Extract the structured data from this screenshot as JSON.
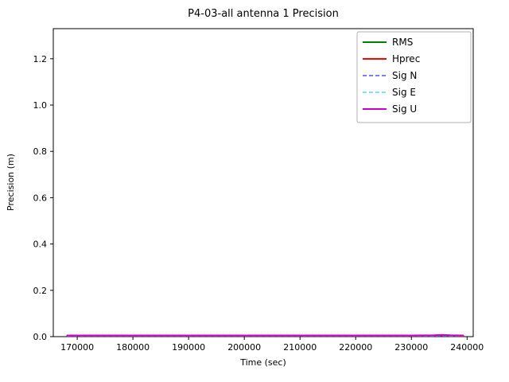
{
  "chart_data": {
    "type": "line",
    "title": "P4-03-all antenna 1 Precision",
    "xlabel": "Time (sec)",
    "ylabel": "Precision (m)",
    "xlim": [
      165700,
      241100
    ],
    "ylim": [
      0,
      1.33
    ],
    "xticks": [
      170000,
      180000,
      190000,
      200000,
      210000,
      220000,
      230000,
      240000
    ],
    "yticks": [
      0.0,
      0.2,
      0.4,
      0.6,
      0.8,
      1.0,
      1.2
    ],
    "grid": false,
    "legend_position": "upper right",
    "x": [
      168200,
      172000,
      178000,
      185000,
      192000,
      200000,
      208000,
      216000,
      224000,
      230000,
      234000,
      235500,
      237000,
      239300
    ],
    "series": [
      {
        "name": "RMS",
        "color": "#008000",
        "style": "solid",
        "width": 2,
        "values": [
          0.004,
          0.004,
          0.004,
          0.004,
          0.004,
          0.004,
          0.004,
          0.004,
          0.004,
          0.004,
          0.004,
          0.005,
          0.004,
          0.004
        ]
      },
      {
        "name": "Hprec",
        "color": "#ff0000",
        "style": "solid",
        "width": 2,
        "values": [
          0.003,
          0.003,
          0.003,
          0.003,
          0.003,
          0.003,
          0.003,
          0.003,
          0.003,
          0.003,
          0.003,
          0.004,
          0.003,
          0.003
        ]
      },
      {
        "name": "Sig N",
        "color": "#0000ff",
        "style": "dashed",
        "width": 1,
        "values": [
          0.002,
          0.002,
          0.002,
          0.002,
          0.002,
          0.002,
          0.002,
          0.002,
          0.002,
          0.002,
          0.002,
          0.003,
          0.002,
          0.002
        ]
      },
      {
        "name": "Sig E",
        "color": "#00bfff",
        "style": "dashed",
        "width": 1,
        "values": [
          0.002,
          0.002,
          0.002,
          0.002,
          0.002,
          0.002,
          0.002,
          0.002,
          0.002,
          0.002,
          0.002,
          0.003,
          0.002,
          0.002
        ]
      },
      {
        "name": "Sig U",
        "color": "#cc00cc",
        "style": "solid",
        "width": 2,
        "values": [
          0.005,
          0.005,
          0.005,
          0.005,
          0.005,
          0.005,
          0.005,
          0.005,
          0.005,
          0.005,
          0.006,
          0.008,
          0.006,
          0.005
        ]
      }
    ]
  }
}
